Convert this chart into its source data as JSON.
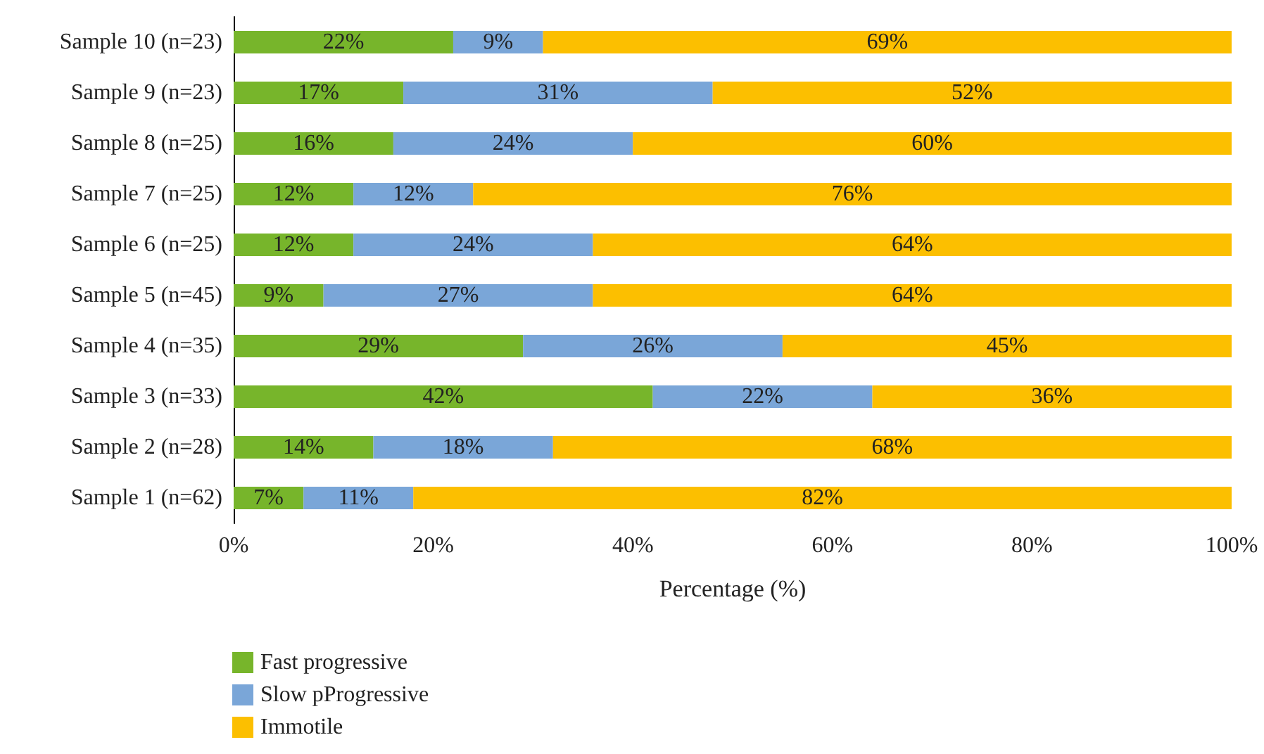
{
  "chart_data": {
    "type": "bar",
    "orientation": "horizontal",
    "stacked": true,
    "xlabel": "Percentage (%)",
    "categories": [
      "Sample 10 (n=23)",
      "Sample 9 (n=23)",
      "Sample 8 (n=25)",
      "Sample 7 (n=25)",
      "Sample 6 (n=25)",
      "Sample 5 (n=45)",
      "Sample 4 (n=35)",
      "Sample 3 (n=33)",
      "Sample 2 (n=28)",
      "Sample 1 (n=62)"
    ],
    "series": [
      {
        "name": "Fast progressive",
        "color": "#77b52b",
        "values": [
          22,
          17,
          16,
          12,
          12,
          9,
          29,
          42,
          14,
          7
        ],
        "value_labels": [
          "22%",
          "17%",
          "16%",
          "12%",
          "12%",
          "9%",
          "29%",
          "42%",
          "14%",
          "7%"
        ]
      },
      {
        "name": "Slow pProgressive",
        "color": "#7aa6d8",
        "values": [
          9,
          31,
          24,
          12,
          24,
          27,
          26,
          22,
          18,
          11
        ],
        "value_labels": [
          "9%",
          "31%",
          "24%",
          "12%",
          "24%",
          "27%",
          "26%",
          "22%",
          "18%",
          "11%"
        ]
      },
      {
        "name": "Immotile",
        "color": "#fcbf00",
        "values": [
          69,
          52,
          60,
          76,
          64,
          64,
          45,
          36,
          68,
          82
        ],
        "value_labels": [
          "69%",
          "52%",
          "60%",
          "76%",
          "64%",
          "64%",
          "45%",
          "36%",
          "68%",
          "82%"
        ]
      }
    ],
    "xlim": [
      0,
      100
    ],
    "xticks": [
      {
        "value": 0,
        "label": "0%"
      },
      {
        "value": 20,
        "label": "20%"
      },
      {
        "value": 40,
        "label": "40%"
      },
      {
        "value": 60,
        "label": "60%"
      },
      {
        "value": 80,
        "label": "80%"
      },
      {
        "value": 100,
        "label": "100%"
      }
    ],
    "grid": false,
    "legend": "bottom left"
  }
}
